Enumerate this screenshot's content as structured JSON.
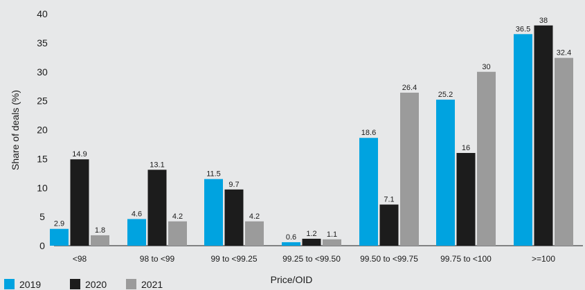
{
  "chart_data": {
    "type": "bar",
    "title": "",
    "xlabel": "Price/OID",
    "ylabel": "Share of deals (%)",
    "ylim": [
      0,
      40
    ],
    "yticks": [
      0,
      5,
      10,
      15,
      20,
      25,
      30,
      35,
      40
    ],
    "grid": false,
    "legend_position": "bottom-left",
    "categories": [
      "<98",
      "98 to <99",
      "99 to <99.25",
      "99.25 to <99.50",
      "99.50 to <99.75",
      "99.75 to <100",
      ">=100"
    ],
    "series": [
      {
        "name": "2019",
        "color": "#00a3e0",
        "values": [
          2.9,
          4.6,
          11.5,
          0.6,
          18.6,
          25.2,
          36.5
        ]
      },
      {
        "name": "2020",
        "color": "#1c1c1c",
        "values": [
          14.9,
          13.1,
          9.7,
          1.2,
          7.1,
          16,
          38
        ]
      },
      {
        "name": "2021",
        "color": "#9b9b9b",
        "values": [
          1.8,
          4.2,
          4.2,
          1.1,
          26.4,
          30,
          32.4
        ]
      }
    ]
  }
}
